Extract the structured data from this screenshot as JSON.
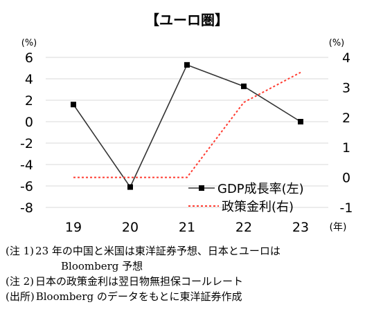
{
  "chart_data": {
    "type": "line",
    "title": "【ユーロ圏】",
    "categories": [
      "19",
      "20",
      "21",
      "22",
      "23"
    ],
    "x_unit": "(年)",
    "left_axis": {
      "unit": "(%)",
      "ylim": [
        -8,
        6
      ],
      "ticks": [
        6,
        4,
        2,
        0,
        -2,
        -4,
        -6,
        -8
      ]
    },
    "right_axis": {
      "unit": "(%)",
      "ylim": [
        -1,
        4
      ],
      "ticks": [
        4,
        3,
        2,
        1,
        0,
        -1
      ]
    },
    "grid": true,
    "legend_position": "bottom-right",
    "series": [
      {
        "name": "GDP成長率(左)",
        "axis": "left",
        "color": "#333333",
        "style": "solid-square-markers",
        "values": [
          1.6,
          -6.1,
          5.3,
          3.3,
          0.0
        ]
      },
      {
        "name": "政策金利(右)",
        "axis": "right",
        "color": "#ff3b30",
        "style": "dashed",
        "values": [
          0.0,
          0.0,
          0.0,
          2.5,
          3.5
        ]
      }
    ]
  },
  "notes": [
    {
      "tag": "(注 1)",
      "text": "23 年の中国と米国は東洋証券予想、日本とユーロは"
    },
    {
      "tag": "",
      "text": "Bloomberg 予想"
    },
    {
      "tag": "(注 2)",
      "text": "日本の政策金利は翌日物無担保コールレート"
    },
    {
      "tag": "(出所)",
      "text": "Bloomberg のデータをもとに東洋証券作成"
    }
  ]
}
